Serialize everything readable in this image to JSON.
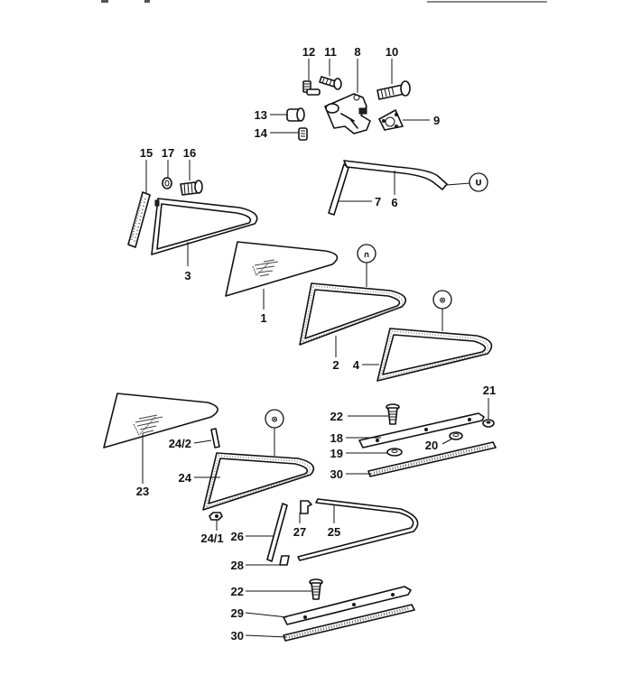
{
  "diagram": {
    "callouts": {
      "c1": "1",
      "c2": "2",
      "c3": "3",
      "c4": "4",
      "c6": "6",
      "c7": "7",
      "c8": "8",
      "c9": "9",
      "c10": "10",
      "c11": "11",
      "c12": "12",
      "c13": "13",
      "c14": "14",
      "c15": "15",
      "c16": "16",
      "c17": "17",
      "c18": "18",
      "c19": "19",
      "c20": "20",
      "c21": "21",
      "c22a": "22",
      "c22b": "22",
      "c23": "23",
      "c24": "24",
      "c24_1": "24/1",
      "c24_2": "24/2",
      "c25": "25",
      "c26": "26",
      "c27": "27",
      "c28": "28",
      "c29": "29",
      "c30a": "30",
      "c30b": "30"
    },
    "symbols": {
      "u_symbol": "U",
      "n_symbol": "∩",
      "car_symbol_a": "⊛",
      "car_symbol_b": "⊛"
    }
  }
}
